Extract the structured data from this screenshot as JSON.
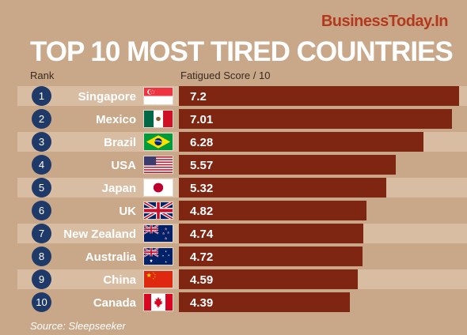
{
  "brand": "BusinessToday.In",
  "source": "Source: Sleepseeker",
  "chart_data": {
    "type": "bar",
    "orientation": "horizontal",
    "title": "TOP 10 MOST TIRED COUNTRIES",
    "rank_label": "Rank",
    "value_label": "Fatigued Score / 10",
    "xlim": [
      0,
      7.2
    ],
    "grid": false,
    "bar_color": "#7f2612",
    "rows": [
      {
        "rank": "1",
        "country": "Singapore",
        "flag": "singapore-flag-icon",
        "value": 7.2,
        "label": "7.2"
      },
      {
        "rank": "2",
        "country": "Mexico",
        "flag": "mexico-flag-icon",
        "value": 7.01,
        "label": "7.01"
      },
      {
        "rank": "3",
        "country": "Brazil",
        "flag": "brazil-flag-icon",
        "value": 6.28,
        "label": "6.28"
      },
      {
        "rank": "4",
        "country": "USA",
        "flag": "usa-flag-icon",
        "value": 5.57,
        "label": "5.57"
      },
      {
        "rank": "5",
        "country": "Japan",
        "flag": "japan-flag-icon",
        "value": 5.32,
        "label": "5.32"
      },
      {
        "rank": "6",
        "country": "UK",
        "flag": "uk-flag-icon",
        "value": 4.82,
        "label": "4.82"
      },
      {
        "rank": "7",
        "country": "New Zealand",
        "flag": "new-zealand-flag-icon",
        "value": 4.74,
        "label": "4.74"
      },
      {
        "rank": "8",
        "country": "Australia",
        "flag": "australia-flag-icon",
        "value": 4.72,
        "label": "4.72"
      },
      {
        "rank": "9",
        "country": "China",
        "flag": "china-flag-icon",
        "value": 4.59,
        "label": "4.59"
      },
      {
        "rank": "10",
        "country": "Canada",
        "flag": "canada-flag-icon",
        "value": 4.39,
        "label": "4.39"
      }
    ]
  }
}
